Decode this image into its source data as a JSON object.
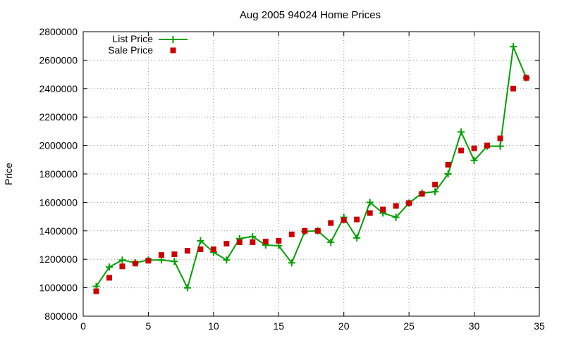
{
  "chart_data": {
    "type": "line",
    "title": "Aug 2005 94024 Home Prices",
    "xlabel": "",
    "ylabel": "Price",
    "xlim": [
      0,
      35
    ],
    "ylim": [
      800000,
      2800000
    ],
    "xticks": [
      0,
      5,
      10,
      15,
      20,
      25,
      30,
      35
    ],
    "yticks": [
      800000,
      1000000,
      1200000,
      1400000,
      1600000,
      1800000,
      2000000,
      2200000,
      2400000,
      2600000,
      2800000
    ],
    "xtick_labels": [
      "0",
      "5",
      "10",
      "15",
      "20",
      "25",
      "30",
      "35"
    ],
    "ytick_labels": [
      "800000",
      "1000000",
      "1200000",
      "1400000",
      "1600000",
      "1800000",
      "2000000",
      "2200000",
      "2400000",
      "2600000",
      "2800000"
    ],
    "grid": true,
    "legend_position": "top-left",
    "x": [
      1,
      2,
      3,
      4,
      5,
      6,
      7,
      8,
      9,
      10,
      11,
      12,
      13,
      14,
      15,
      16,
      17,
      18,
      19,
      20,
      21,
      22,
      23,
      24,
      25,
      26,
      27,
      28,
      29,
      30,
      31,
      32,
      33,
      34
    ],
    "series": [
      {
        "name": "List Price",
        "style": "line-plus",
        "color": "#00a000",
        "values": [
          1010000,
          1145000,
          1195000,
          1175000,
          1195000,
          1195000,
          1185000,
          999000,
          1330000,
          1250000,
          1195000,
          1345000,
          1360000,
          1300000,
          1295000,
          1175000,
          1395000,
          1400000,
          1320000,
          1495000,
          1350000,
          1600000,
          1525000,
          1495000,
          1595000,
          1665000,
          1675000,
          1800000,
          2095000,
          1895000,
          1995000,
          1995000,
          2695000,
          2475000
        ]
      },
      {
        "name": "Sale Price",
        "style": "square-points",
        "color": "#cc0000",
        "values": [
          975000,
          1070000,
          1150000,
          1170000,
          1190000,
          1230000,
          1235000,
          1260000,
          1270000,
          1270000,
          1310000,
          1320000,
          1320000,
          1325000,
          1330000,
          1375000,
          1400000,
          1400000,
          1455000,
          1475000,
          1480000,
          1525000,
          1550000,
          1575000,
          1595000,
          1660000,
          1725000,
          1865000,
          1965000,
          1980000,
          2000000,
          2050000,
          2400000,
          2475000
        ]
      }
    ]
  }
}
